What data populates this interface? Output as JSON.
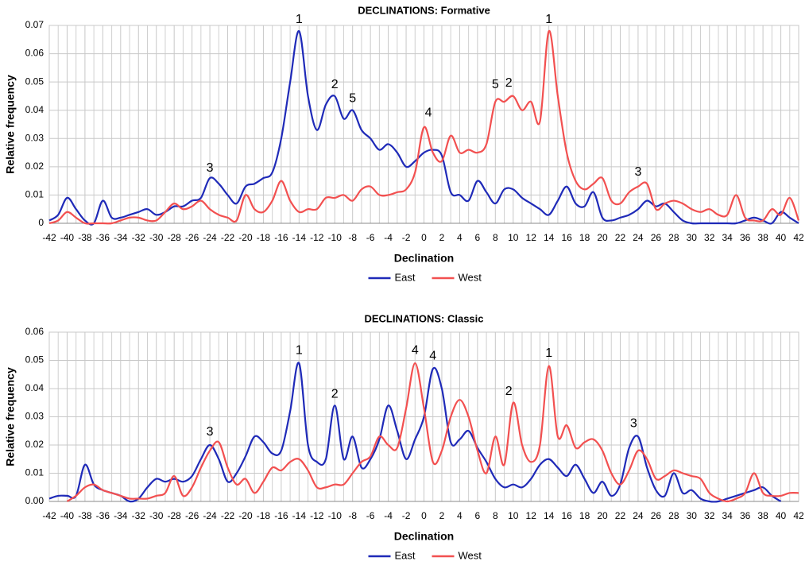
{
  "chart_data": [
    {
      "type": "line",
      "title": "DECLINATIONS: Formative",
      "x_label": "Declination",
      "y_label": "Relative frequency",
      "x": [
        -42,
        -41,
        -40,
        -39,
        -38,
        -37,
        -36,
        -35,
        -34,
        -33,
        -32,
        -31,
        -30,
        -29,
        -28,
        -27,
        -26,
        -25,
        -24,
        -23,
        -22,
        -21,
        -20,
        -19,
        -18,
        -17,
        -16,
        -15,
        -14,
        -13,
        -12,
        -11,
        -10,
        -9,
        -8,
        -7,
        -6,
        -5,
        -4,
        -3,
        -2,
        -1,
        0,
        1,
        2,
        3,
        4,
        5,
        6,
        7,
        8,
        9,
        10,
        11,
        12,
        13,
        14,
        15,
        16,
        17,
        18,
        19,
        20,
        21,
        22,
        23,
        24,
        25,
        26,
        27,
        28,
        29,
        30,
        31,
        32,
        33,
        34,
        35,
        36,
        37,
        38,
        39,
        40,
        41,
        42
      ],
      "series": [
        {
          "name": "East",
          "color": "#1f2ab8",
          "values": [
            0.001,
            0.003,
            0.009,
            0.005,
            0.001,
            0.0,
            0.008,
            0.002,
            0.002,
            0.003,
            0.004,
            0.005,
            0.003,
            0.004,
            0.006,
            0.006,
            0.008,
            0.009,
            0.016,
            0.014,
            0.01,
            0.007,
            0.013,
            0.014,
            0.016,
            0.018,
            0.03,
            0.05,
            0.068,
            0.045,
            0.033,
            0.042,
            0.045,
            0.037,
            0.04,
            0.033,
            0.03,
            0.026,
            0.028,
            0.025,
            0.02,
            0.022,
            0.025,
            0.026,
            0.024,
            0.011,
            0.01,
            0.008,
            0.015,
            0.011,
            0.007,
            0.012,
            0.012,
            0.009,
            0.007,
            0.005,
            0.003,
            0.008,
            0.013,
            0.007,
            0.006,
            0.011,
            0.002,
            0.001,
            0.002,
            0.003,
            0.005,
            0.008,
            0.006,
            0.007,
            0.004,
            0.001,
            0.0,
            0.0,
            0.0,
            0.0,
            0.0,
            0.0,
            0.001,
            0.002,
            0.001,
            0.0,
            0.004,
            0.002,
            0.0
          ]
        },
        {
          "name": "West",
          "color": "#f25050",
          "values": [
            0.0,
            0.001,
            0.004,
            0.002,
            0.0,
            0.0,
            0.0,
            0.0,
            0.001,
            0.002,
            0.002,
            0.001,
            0.001,
            0.004,
            0.007,
            0.005,
            0.006,
            0.008,
            0.005,
            0.003,
            0.002,
            0.001,
            0.01,
            0.005,
            0.004,
            0.008,
            0.015,
            0.008,
            0.004,
            0.005,
            0.005,
            0.009,
            0.009,
            0.01,
            0.008,
            0.012,
            0.013,
            0.01,
            0.01,
            0.011,
            0.012,
            0.018,
            0.034,
            0.025,
            0.022,
            0.031,
            0.025,
            0.026,
            0.025,
            0.028,
            0.043,
            0.043,
            0.045,
            0.04,
            0.043,
            0.036,
            0.068,
            0.045,
            0.025,
            0.015,
            0.012,
            0.014,
            0.016,
            0.008,
            0.007,
            0.011,
            0.013,
            0.014,
            0.005,
            0.007,
            0.008,
            0.007,
            0.005,
            0.004,
            0.005,
            0.003,
            0.003,
            0.01,
            0.002,
            0.001,
            0.001,
            0.005,
            0.003,
            0.009,
            0.001
          ]
        }
      ],
      "xlim": [
        -42,
        42
      ],
      "xticks": [
        -42,
        -40,
        -38,
        -36,
        -34,
        -32,
        -30,
        -28,
        -26,
        -24,
        -22,
        -20,
        -18,
        -16,
        -14,
        -12,
        -10,
        -8,
        -6,
        -4,
        -2,
        0,
        2,
        4,
        6,
        8,
        10,
        12,
        14,
        16,
        18,
        20,
        22,
        24,
        26,
        28,
        30,
        32,
        34,
        36,
        38,
        40,
        42
      ],
      "ylim": [
        0,
        0.07
      ],
      "yticks": [
        0,
        0.01,
        0.02,
        0.03,
        0.04,
        0.05,
        0.06,
        0.07
      ],
      "grid": true,
      "legend": "bottom",
      "annotations": [
        {
          "text": "1",
          "x": -14,
          "y": 0.072
        },
        {
          "text": "2",
          "x": -10,
          "y": 0.049
        },
        {
          "text": "5",
          "x": -8,
          "y": 0.044
        },
        {
          "text": "4",
          "x": 0.5,
          "y": 0.039
        },
        {
          "text": "3",
          "x": -24,
          "y": 0.0195
        },
        {
          "text": "5",
          "x": 8,
          "y": 0.049
        },
        {
          "text": "2",
          "x": 9.5,
          "y": 0.0495
        },
        {
          "text": "1",
          "x": 14,
          "y": 0.072
        },
        {
          "text": "3",
          "x": 24,
          "y": 0.018
        }
      ]
    },
    {
      "type": "line",
      "title": "DECLINATIONS: Classic",
      "x_label": "Declination",
      "y_label": "Relative frequency",
      "x": [
        -42,
        -41,
        -40,
        -39,
        -38,
        -37,
        -36,
        -35,
        -34,
        -33,
        -32,
        -31,
        -30,
        -29,
        -28,
        -27,
        -26,
        -25,
        -24,
        -23,
        -22,
        -21,
        -20,
        -19,
        -18,
        -17,
        -16,
        -15,
        -14,
        -13,
        -12,
        -11,
        -10,
        -9,
        -8,
        -7,
        -6,
        -5,
        -4,
        -3,
        -2,
        -1,
        0,
        1,
        2,
        3,
        4,
        5,
        6,
        7,
        8,
        9,
        10,
        11,
        12,
        13,
        14,
        15,
        16,
        17,
        18,
        19,
        20,
        21,
        22,
        23,
        24,
        25,
        26,
        27,
        28,
        29,
        30,
        31,
        32,
        33,
        34,
        35,
        36,
        37,
        38,
        39,
        40,
        41,
        42
      ],
      "series": [
        {
          "name": "East",
          "color": "#1f2ab8",
          "values": [
            0.001,
            0.002,
            0.002,
            0.002,
            0.013,
            0.006,
            0.004,
            0.003,
            0.002,
            0.0,
            0.001,
            0.005,
            0.008,
            0.007,
            0.008,
            0.007,
            0.009,
            0.015,
            0.02,
            0.015,
            0.007,
            0.01,
            0.016,
            0.023,
            0.021,
            0.017,
            0.018,
            0.032,
            0.049,
            0.02,
            0.014,
            0.015,
            0.034,
            0.015,
            0.023,
            0.012,
            0.015,
            0.022,
            0.034,
            0.025,
            0.015,
            0.022,
            0.03,
            0.047,
            0.04,
            0.021,
            0.022,
            0.025,
            0.019,
            0.014,
            0.008,
            0.005,
            0.006,
            0.005,
            0.008,
            0.013,
            0.015,
            0.012,
            0.009,
            0.013,
            0.008,
            0.003,
            0.007,
            0.002,
            0.006,
            0.019,
            0.023,
            0.012,
            0.004,
            0.002,
            0.01,
            0.003,
            0.004,
            0.001,
            0.0,
            0.0,
            0.001,
            0.002,
            0.003,
            0.004,
            0.005,
            0.002,
            0.0,
            null,
            null
          ]
        },
        {
          "name": "West",
          "color": "#f25050",
          "values": [
            null,
            null,
            0.0,
            0.002,
            0.005,
            0.006,
            0.004,
            0.003,
            0.002,
            0.001,
            0.001,
            0.001,
            0.002,
            0.003,
            0.009,
            0.002,
            0.005,
            0.012,
            0.018,
            0.021,
            0.012,
            0.006,
            0.008,
            0.003,
            0.007,
            0.012,
            0.011,
            0.014,
            0.015,
            0.011,
            0.005,
            0.005,
            0.006,
            0.006,
            0.01,
            0.014,
            0.016,
            0.023,
            0.02,
            0.019,
            0.033,
            0.049,
            0.033,
            0.014,
            0.018,
            0.03,
            0.036,
            0.03,
            0.018,
            0.01,
            0.023,
            0.013,
            0.035,
            0.02,
            0.014,
            0.02,
            0.048,
            0.023,
            0.027,
            0.019,
            0.021,
            0.022,
            0.018,
            0.01,
            0.006,
            0.011,
            0.018,
            0.015,
            0.008,
            0.009,
            0.011,
            0.01,
            0.009,
            0.008,
            0.003,
            0.001,
            0.0,
            0.001,
            0.003,
            0.01,
            0.003,
            0.002,
            0.002,
            0.003,
            0.003
          ]
        }
      ],
      "xlim": [
        -42,
        42
      ],
      "xticks": [
        -42,
        -40,
        -38,
        -36,
        -34,
        -32,
        -30,
        -28,
        -26,
        -24,
        -22,
        -20,
        -18,
        -16,
        -14,
        -12,
        -10,
        -8,
        -6,
        -4,
        -2,
        0,
        2,
        4,
        6,
        8,
        10,
        12,
        14,
        16,
        18,
        20,
        22,
        24,
        26,
        28,
        30,
        32,
        34,
        36,
        38,
        40,
        42
      ],
      "ylim": [
        0,
        0.06
      ],
      "yticks": [
        {
          "value": 0,
          "label": "0.00"
        },
        0.01,
        0.02,
        0.03,
        0.04,
        0.05,
        0.06
      ],
      "grid": true,
      "legend": "bottom",
      "annotations": [
        {
          "text": "1",
          "x": -14,
          "y": 0.0535
        },
        {
          "text": "2",
          "x": -10,
          "y": 0.038
        },
        {
          "text": "3",
          "x": -24,
          "y": 0.0245
        },
        {
          "text": "4",
          "x": -1,
          "y": 0.0535
        },
        {
          "text": "4",
          "x": 1,
          "y": 0.0515
        },
        {
          "text": "2",
          "x": 9.5,
          "y": 0.039
        },
        {
          "text": "1",
          "x": 14,
          "y": 0.0525
        },
        {
          "text": "3",
          "x": 23.5,
          "y": 0.0275
        }
      ]
    }
  ]
}
